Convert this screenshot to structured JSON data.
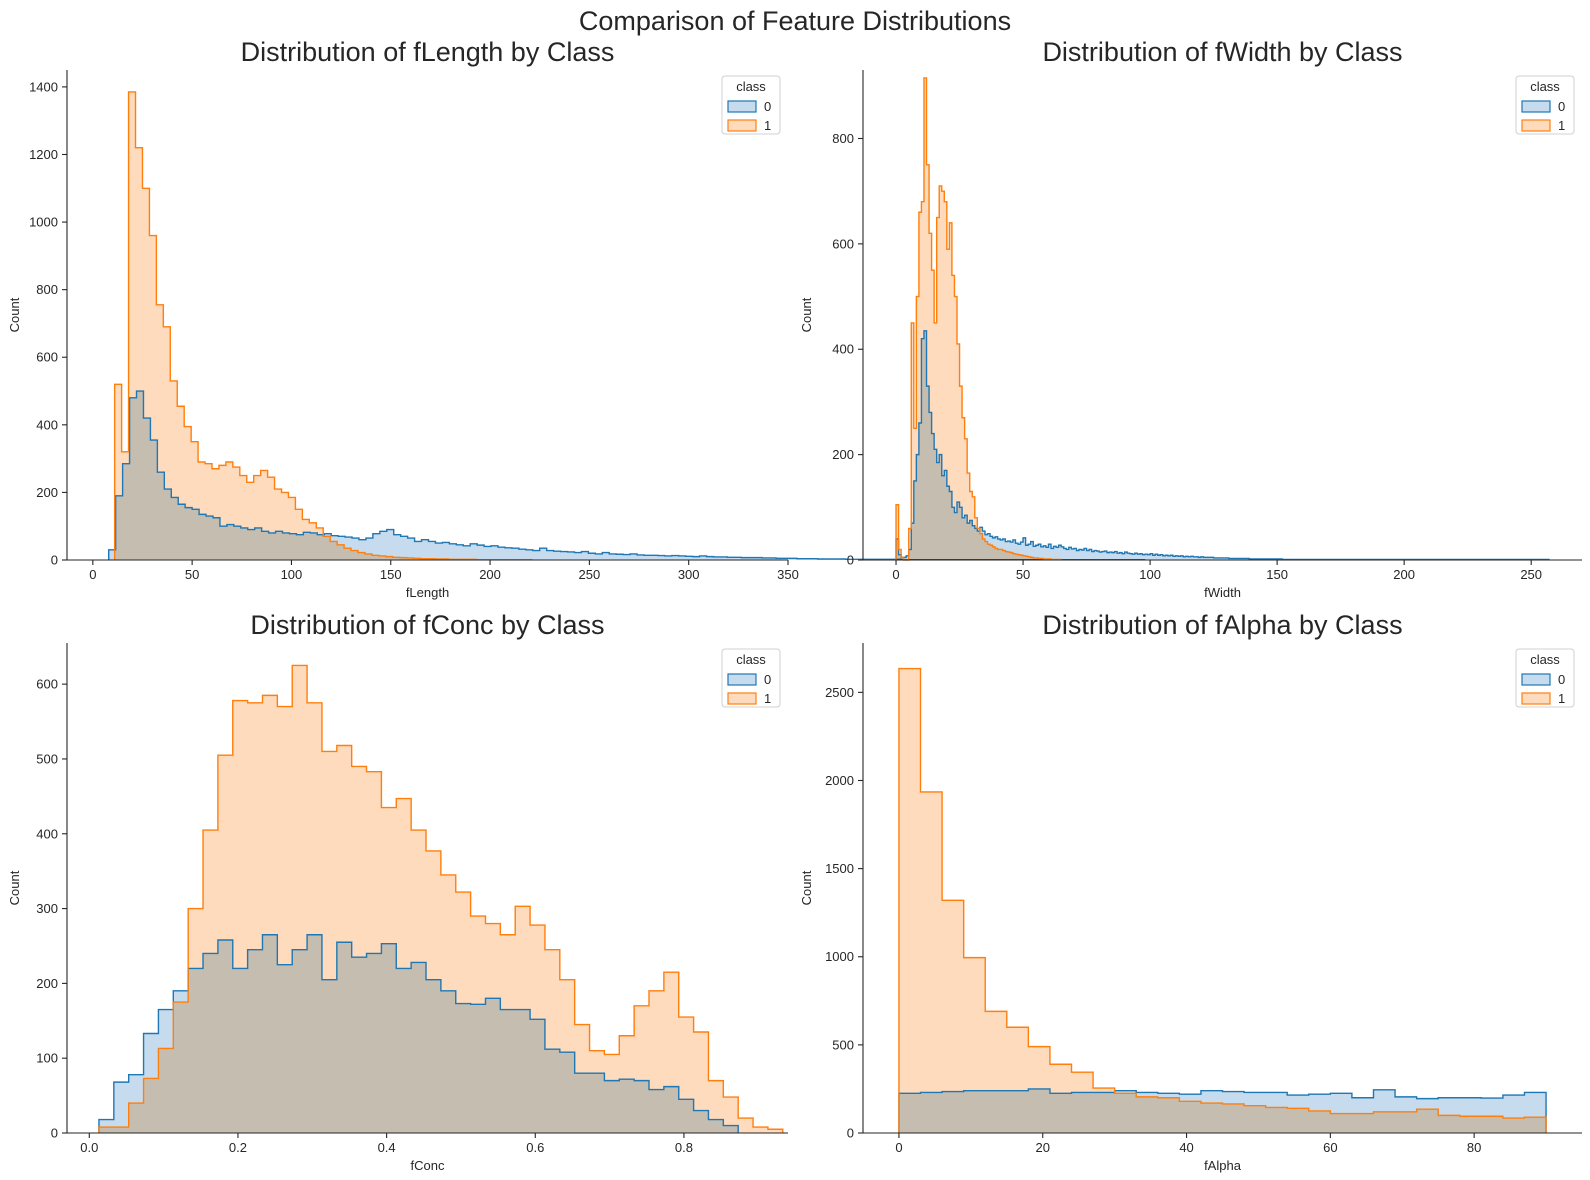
{
  "figure": {
    "suptitle": "Comparison of Feature Distributions",
    "colors": {
      "class0": "#1f77b4",
      "class1": "#ff7f0e",
      "class0_fill": "#c6dcee",
      "class1_fill": "#fedbbd"
    }
  },
  "chart_data": [
    {
      "type": "histogram",
      "title": "Distribution of fLength by Class",
      "xlabel": "fLength",
      "ylabel": "Count",
      "xlim": [
        -13,
        350
      ],
      "ylim": [
        0,
        1450
      ],
      "xticks": [
        0,
        50,
        100,
        150,
        200,
        250,
        300,
        350
      ],
      "yticks": [
        0,
        200,
        400,
        600,
        800,
        1000,
        1200,
        1400
      ],
      "legend": {
        "title": "class",
        "entries": [
          "0",
          "1"
        ],
        "position": "upper right"
      },
      "grid": false,
      "series": [
        {
          "name": "0",
          "bins_start": 8,
          "bin_width": 3.5,
          "counts": [
            30,
            190,
            285,
            480,
            500,
            420,
            355,
            260,
            210,
            185,
            165,
            155,
            150,
            135,
            130,
            125,
            100,
            105,
            100,
            95,
            90,
            95,
            85,
            80,
            85,
            80,
            78,
            75,
            82,
            80,
            75,
            78,
            72,
            70,
            68,
            65,
            60,
            65,
            78,
            85,
            90,
            75,
            70,
            65,
            55,
            60,
            55,
            50,
            52,
            48,
            45,
            42,
            48,
            44,
            40,
            42,
            38,
            36,
            35,
            32,
            30,
            28,
            35,
            28,
            26,
            25,
            24,
            22,
            25,
            20,
            18,
            22,
            18,
            17,
            16,
            18,
            15,
            14,
            14,
            13,
            12,
            13,
            12,
            11,
            10,
            12,
            10,
            9,
            9,
            8,
            8,
            7,
            7,
            7,
            6,
            6,
            5,
            5,
            5,
            4,
            4,
            4,
            3,
            3,
            3,
            3,
            2,
            2,
            2,
            2,
            2,
            2,
            2,
            2,
            1,
            1,
            1,
            1,
            1,
            1,
            1,
            1,
            1,
            1,
            1,
            1,
            1,
            1,
            1,
            1,
            1,
            1,
            1,
            1,
            1,
            1,
            1,
            1,
            1,
            1,
            1,
            1,
            1,
            1,
            1,
            1,
            1,
            1,
            1
          ]
        },
        {
          "name": "1",
          "bins_start": 11,
          "bin_width": 3.5,
          "counts": [
            520,
            320,
            1385,
            1220,
            1100,
            960,
            755,
            690,
            530,
            455,
            395,
            350,
            290,
            285,
            270,
            280,
            290,
            275,
            250,
            230,
            250,
            265,
            245,
            210,
            200,
            185,
            150,
            120,
            110,
            95,
            70,
            55,
            45,
            35,
            28,
            22,
            18,
            14,
            12,
            10,
            8,
            7,
            6,
            5,
            4,
            4,
            3,
            3,
            2,
            2,
            2,
            2,
            1,
            1,
            1,
            1,
            1,
            1,
            1,
            1
          ]
        }
      ]
    },
    {
      "type": "histogram",
      "title": "Distribution of fWidth by Class",
      "xlabel": "fWidth",
      "ylabel": "Count",
      "xlim": [
        -13,
        270
      ],
      "ylim": [
        0,
        930
      ],
      "xticks": [
        0,
        50,
        100,
        150,
        200,
        250
      ],
      "yticks": [
        0,
        200,
        400,
        600,
        800
      ],
      "legend": {
        "title": "class",
        "entries": [
          "0",
          "1"
        ],
        "position": "upper right"
      },
      "grid": false,
      "series": [
        {
          "name": "0",
          "bins_start": 0,
          "bin_width": 1,
          "counts": [
            40,
            10,
            5,
            5,
            8,
            20,
            70,
            150,
            200,
            260,
            420,
            435,
            330,
            280,
            240,
            210,
            185,
            200,
            160,
            170,
            140,
            130,
            100,
            90,
            110,
            100,
            80,
            85,
            70,
            75,
            65,
            60,
            55,
            62,
            55,
            48,
            50,
            45,
            42,
            44,
            40,
            38,
            40,
            35,
            36,
            34,
            38,
            32,
            30,
            34,
            42,
            28,
            30,
            35,
            26,
            28,
            30,
            25,
            27,
            24,
            30,
            22,
            26,
            24,
            28,
            25,
            22,
            20,
            24,
            21,
            22,
            18,
            20,
            19,
            22,
            18,
            20,
            16,
            18,
            17,
            15,
            16,
            17,
            14,
            15,
            14,
            16,
            13,
            14,
            12,
            15,
            13,
            12,
            11,
            13,
            11,
            12,
            10,
            11,
            10,
            12,
            9,
            11,
            9,
            10,
            8,
            9,
            8,
            9,
            7,
            8,
            7,
            8,
            6,
            7,
            6,
            7,
            6,
            6,
            5,
            6,
            5,
            5,
            5,
            5,
            4,
            4,
            4,
            4,
            4,
            4,
            3,
            3,
            3,
            3,
            3,
            3,
            3,
            3,
            2,
            2,
            2,
            2,
            2,
            2,
            2,
            2,
            2,
            2,
            2,
            2,
            2,
            1,
            1,
            1,
            1,
            1,
            1,
            1,
            1,
            1,
            1,
            1,
            1,
            1,
            1,
            1,
            1,
            1,
            1,
            1,
            1,
            1,
            1,
            1,
            1,
            1,
            1,
            1,
            1,
            1,
            1,
            1,
            1,
            1,
            1,
            1,
            1,
            1,
            1,
            1,
            1,
            1,
            1,
            1,
            1,
            1,
            1,
            1,
            1,
            1,
            1,
            1,
            1,
            1,
            1,
            1,
            1,
            1,
            1,
            1,
            1,
            1,
            1,
            1,
            1,
            1,
            1,
            1,
            1,
            1,
            1,
            1,
            1,
            1,
            1,
            1,
            1,
            1,
            1,
            1,
            1,
            1,
            1,
            1,
            1,
            1,
            1,
            1,
            1,
            1,
            1,
            1,
            1,
            1,
            1,
            1,
            1,
            1,
            1,
            1,
            1,
            1,
            1,
            1,
            1,
            1
          ]
        },
        {
          "name": "1",
          "bins_start": 0,
          "bin_width": 1,
          "counts": [
            105,
            20,
            5,
            0,
            0,
            60,
            450,
            250,
            500,
            660,
            680,
            915,
            750,
            620,
            550,
            450,
            650,
            710,
            700,
            680,
            590,
            640,
            540,
            500,
            410,
            330,
            270,
            230,
            165,
            130,
            120,
            80,
            60,
            50,
            40,
            35,
            30,
            28,
            25,
            22,
            20,
            20,
            18,
            16,
            15,
            14,
            12,
            11,
            10,
            9,
            8,
            7,
            6,
            5,
            4,
            4,
            3,
            3,
            2,
            2,
            2,
            1,
            1,
            1,
            1
          ]
        }
      ]
    },
    {
      "type": "histogram",
      "title": "Distribution of fConc by Class",
      "xlabel": "fConc",
      "ylabel": "Count",
      "xlim": [
        -0.03,
        0.94
      ],
      "ylim": [
        0,
        655
      ],
      "xticks": [
        0.0,
        0.2,
        0.4,
        0.6,
        0.8
      ],
      "xtick_labels": [
        "0.0",
        "0.2",
        "0.4",
        "0.6",
        "0.8"
      ],
      "yticks": [
        0,
        100,
        200,
        300,
        400,
        500,
        600
      ],
      "legend": {
        "title": "class",
        "entries": [
          "0",
          "1"
        ],
        "position": "upper right"
      },
      "grid": false,
      "series": [
        {
          "name": "0",
          "bins_start": 0.013,
          "bin_width": 0.02,
          "counts": [
            18,
            68,
            78,
            133,
            165,
            190,
            220,
            240,
            258,
            220,
            245,
            265,
            225,
            245,
            265,
            205,
            255,
            235,
            240,
            253,
            220,
            228,
            205,
            190,
            173,
            172,
            180,
            165,
            165,
            152,
            112,
            108,
            80,
            80,
            70,
            72,
            70,
            58,
            62,
            45,
            30,
            18,
            10
          ]
        },
        {
          "name": "1",
          "bins_start": 0.013,
          "bin_width": 0.02,
          "counts": [
            8,
            8,
            40,
            73,
            113,
            175,
            300,
            405,
            505,
            578,
            575,
            585,
            570,
            625,
            575,
            510,
            518,
            490,
            483,
            435,
            447,
            405,
            377,
            345,
            322,
            290,
            280,
            265,
            303,
            278,
            245,
            205,
            145,
            110,
            105,
            130,
            170,
            190,
            215,
            155,
            135,
            70,
            48,
            20,
            8,
            5
          ]
        }
      ]
    },
    {
      "type": "histogram",
      "title": "Distribution of fAlpha by Class",
      "xlabel": "fAlpha",
      "ylabel": "Count",
      "xlim": [
        -5,
        95
      ],
      "ylim": [
        0,
        2780
      ],
      "xticks": [
        0,
        20,
        40,
        60,
        80
      ],
      "yticks": [
        0,
        500,
        1000,
        1500,
        2000,
        2500
      ],
      "legend": {
        "title": "class",
        "entries": [
          "0",
          "1"
        ],
        "position": "upper right"
      },
      "grid": false,
      "series": [
        {
          "name": "0",
          "bins_start": 0,
          "bin_width": 3,
          "counts": [
            225,
            230,
            235,
            240,
            240,
            240,
            250,
            225,
            230,
            230,
            240,
            230,
            225,
            220,
            240,
            235,
            230,
            230,
            215,
            220,
            225,
            200,
            245,
            205,
            195,
            200,
            200,
            198,
            215,
            230
          ]
        },
        {
          "name": "1",
          "bins_start": 0,
          "bin_width": 3,
          "counts": [
            2635,
            1935,
            1320,
            995,
            690,
            600,
            490,
            390,
            345,
            255,
            225,
            205,
            200,
            180,
            170,
            165,
            155,
            145,
            140,
            125,
            110,
            110,
            120,
            120,
            135,
            100,
            95,
            95,
            85,
            90
          ]
        }
      ]
    }
  ]
}
